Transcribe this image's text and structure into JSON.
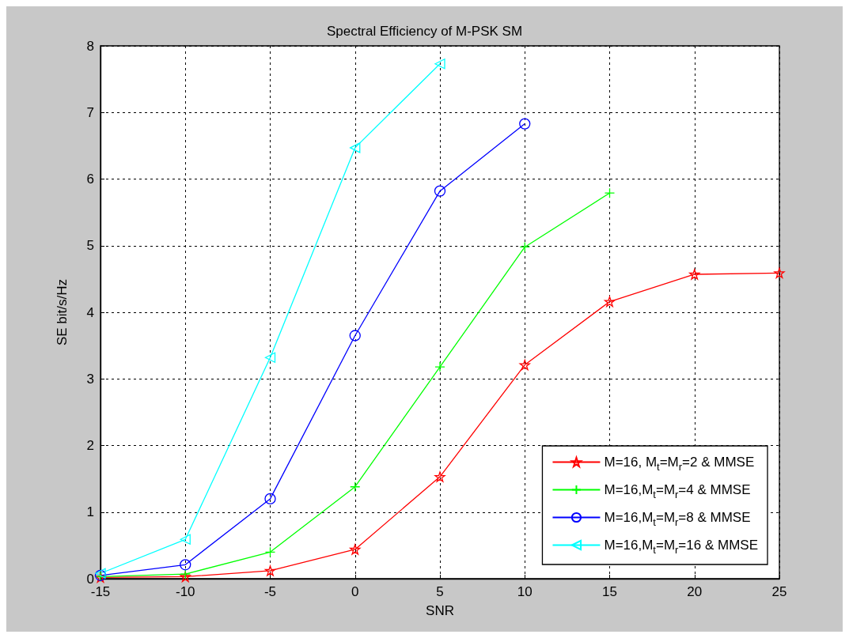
{
  "chart_data": {
    "type": "line",
    "title": "Spectral Efficiency of M-PSK SM",
    "xlabel": "SNR",
    "ylabel": "SE bit/s/Hz",
    "x": [
      -15,
      -10,
      -5,
      0,
      5,
      10,
      15,
      20,
      25
    ],
    "series": [
      {
        "name": "M=16, M$_{t}$=M$_{r}$=2 & MMSE",
        "color": "#ff0000",
        "marker": "star",
        "values": [
          0.02,
          0.03,
          0.12,
          0.44,
          1.53,
          3.21,
          4.16,
          4.57,
          4.59
        ]
      },
      {
        "name": "M=16,M$_{t}$=M$_{r}$=4 & MMSE",
        "color": "#00ff00",
        "marker": "cross",
        "values": [
          0.03,
          0.07,
          0.4,
          1.38,
          3.18,
          4.98,
          5.79,
          null,
          null
        ]
      },
      {
        "name": "M=16,M$_{t}$=M$_{r}$=8 & MMSE",
        "color": "#0000ff",
        "marker": "circle",
        "values": [
          0.05,
          0.21,
          1.2,
          3.65,
          5.82,
          6.83,
          null,
          null,
          null
        ]
      },
      {
        "name": "M=16,M$_{t}$=M$_{r}$=16 & MMSE",
        "color": "#00ffff",
        "marker": "triangle",
        "values": [
          0.08,
          0.59,
          3.32,
          6.47,
          7.73,
          null,
          null,
          null,
          null
        ]
      }
    ],
    "xlim": [
      -15,
      25
    ],
    "xticks": [
      -15,
      -10,
      -5,
      0,
      5,
      10,
      15,
      20,
      25
    ],
    "ylim": [
      0,
      8
    ],
    "yticks": [
      0,
      1,
      2,
      3,
      4,
      5,
      6,
      7,
      8
    ],
    "grid": true,
    "legend": "bottom right",
    "line_style": "solid"
  }
}
